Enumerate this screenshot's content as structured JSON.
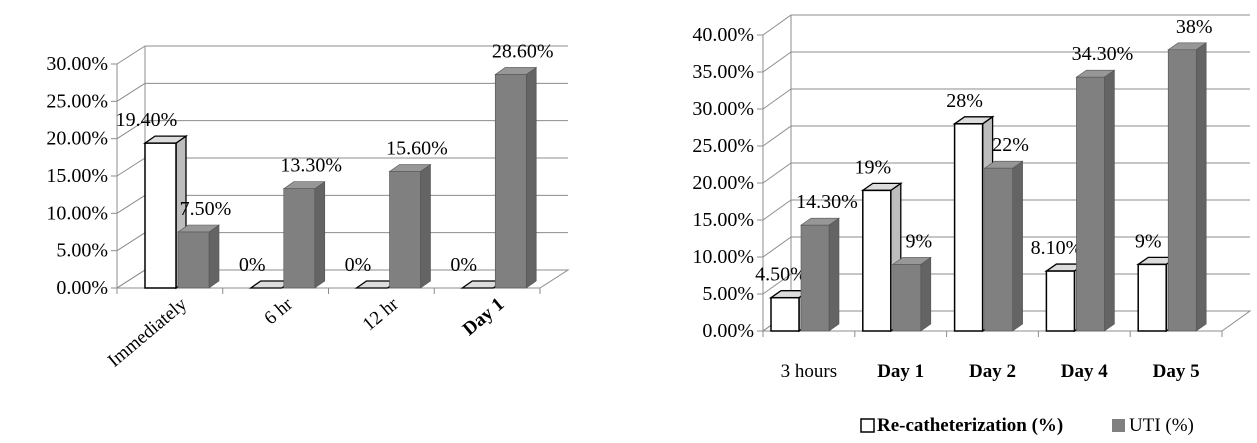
{
  "chart_data": [
    {
      "type": "bar",
      "title": "",
      "xlabel": "",
      "ylabel": "",
      "ylim": [
        0,
        0.3
      ],
      "ytick_labels": [
        "0.00%",
        "5.00%",
        "10.00%",
        "15.00%",
        "20.00%",
        "25.00%",
        "30.00%"
      ],
      "categories": [
        "Immediately",
        "6 hr",
        "12 hr",
        "Day 1"
      ],
      "category_bold": [
        false,
        false,
        false,
        true
      ],
      "grid": true,
      "series": [
        {
          "name": "Re-catheterization (%)",
          "values": [
            0.194,
            0,
            0,
            0
          ],
          "labels": [
            "19.40%",
            "0%",
            "0%",
            "0%"
          ],
          "color": "#ffffff"
        },
        {
          "name": "UTI (%)",
          "values": [
            0.075,
            0.133,
            0.156,
            0.286
          ],
          "labels": [
            "7.50%",
            "13.30%",
            "15.60%",
            "28.60%"
          ],
          "color": "#808080"
        }
      ]
    },
    {
      "type": "bar",
      "title": "",
      "xlabel": "",
      "ylabel": "",
      "ylim": [
        0,
        0.4
      ],
      "ytick_labels": [
        "0.00%",
        "5.00%",
        "10.00%",
        "15.00%",
        "20.00%",
        "25.00%",
        "30.00%",
        "35.00%",
        "40.00%"
      ],
      "categories": [
        "3 hours",
        "Day 1",
        "Day 2",
        "Day 4",
        "Day 5"
      ],
      "category_bold": [
        false,
        true,
        true,
        true,
        true
      ],
      "grid": true,
      "legend_position": "bottom",
      "series": [
        {
          "name": "Re-catheterization (%)",
          "values": [
            0.045,
            0.19,
            0.28,
            0.081,
            0.09
          ],
          "labels": [
            "4.50%",
            "19%",
            "28%",
            "8.10%",
            "9%"
          ],
          "color": "#ffffff"
        },
        {
          "name": "UTI (%)",
          "values": [
            0.143,
            0.09,
            0.22,
            0.343,
            0.38
          ],
          "labels": [
            "14.30%",
            "9%",
            "22%",
            "34.30%",
            "38%"
          ],
          "color": "#808080"
        }
      ]
    }
  ],
  "legend": {
    "items": [
      {
        "label": "Re-catheterization (%)",
        "swatch": "#ffffff",
        "bold": true
      },
      {
        "label": "UTI (%)",
        "swatch": "#808080",
        "bold": false
      }
    ]
  }
}
